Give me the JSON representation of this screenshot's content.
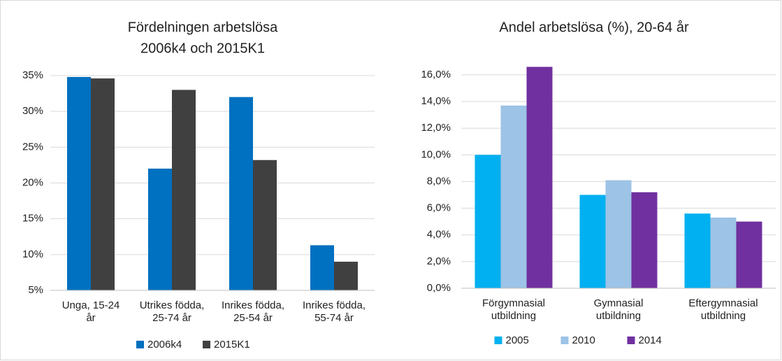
{
  "chart_data": [
    {
      "type": "bar",
      "title": [
        "Fördelningen arbetslösa",
        "2006k4 och 2015K1"
      ],
      "categories": [
        [
          "Unga, 15-24",
          "år"
        ],
        [
          "Utrikes födda,",
          "25-74 år"
        ],
        [
          "Inrikes födda,",
          "25-54 år"
        ],
        [
          "Inrikes födda,",
          "55-74 år"
        ]
      ],
      "series": [
        {
          "name": "2006k4",
          "color": "#0070c0",
          "values": [
            34.8,
            22,
            32,
            11.3
          ]
        },
        {
          "name": "2015K1",
          "color": "#404040",
          "values": [
            34.6,
            33,
            23.2,
            9
          ]
        }
      ],
      "ylim": [
        5,
        35
      ],
      "yticks": [
        {
          "value": 5,
          "label": "5%"
        },
        {
          "value": 10,
          "label": "10%"
        },
        {
          "value": 15,
          "label": "15%"
        },
        {
          "value": 20,
          "label": "20%"
        },
        {
          "value": 25,
          "label": "25%"
        },
        {
          "value": 30,
          "label": "30%"
        },
        {
          "value": 35,
          "label": "35%"
        }
      ],
      "grid": true,
      "legend": "bottom"
    },
    {
      "type": "bar",
      "title": [
        "Andel arbetslösa (%), 20-64 år"
      ],
      "categories": [
        [
          "Förgymnasial",
          "utbildning"
        ],
        [
          "Gymnasial",
          "utbildning"
        ],
        [
          "Eftergymnasial",
          "utbildning"
        ]
      ],
      "series": [
        {
          "name": "2005",
          "color": "#00b0f0",
          "values": [
            10,
            7,
            5.6
          ]
        },
        {
          "name": "2010",
          "color": "#9dc3e6",
          "values": [
            13.7,
            8.1,
            5.3
          ]
        },
        {
          "name": "2014",
          "color": "#7030a0",
          "values": [
            16.6,
            7.2,
            5
          ]
        }
      ],
      "ylim": [
        0,
        16
      ],
      "yticks": [
        {
          "value": 0,
          "label": "0,0%"
        },
        {
          "value": 2,
          "label": "2,0%"
        },
        {
          "value": 4,
          "label": "4,0%"
        },
        {
          "value": 6,
          "label": "6,0%"
        },
        {
          "value": 8,
          "label": "8,0%"
        },
        {
          "value": 10,
          "label": "10,0%"
        },
        {
          "value": 12,
          "label": "12,0%"
        },
        {
          "value": 14,
          "label": "14,0%"
        },
        {
          "value": 16,
          "label": "16,0%"
        }
      ],
      "grid": true,
      "legend": "bottom"
    }
  ]
}
